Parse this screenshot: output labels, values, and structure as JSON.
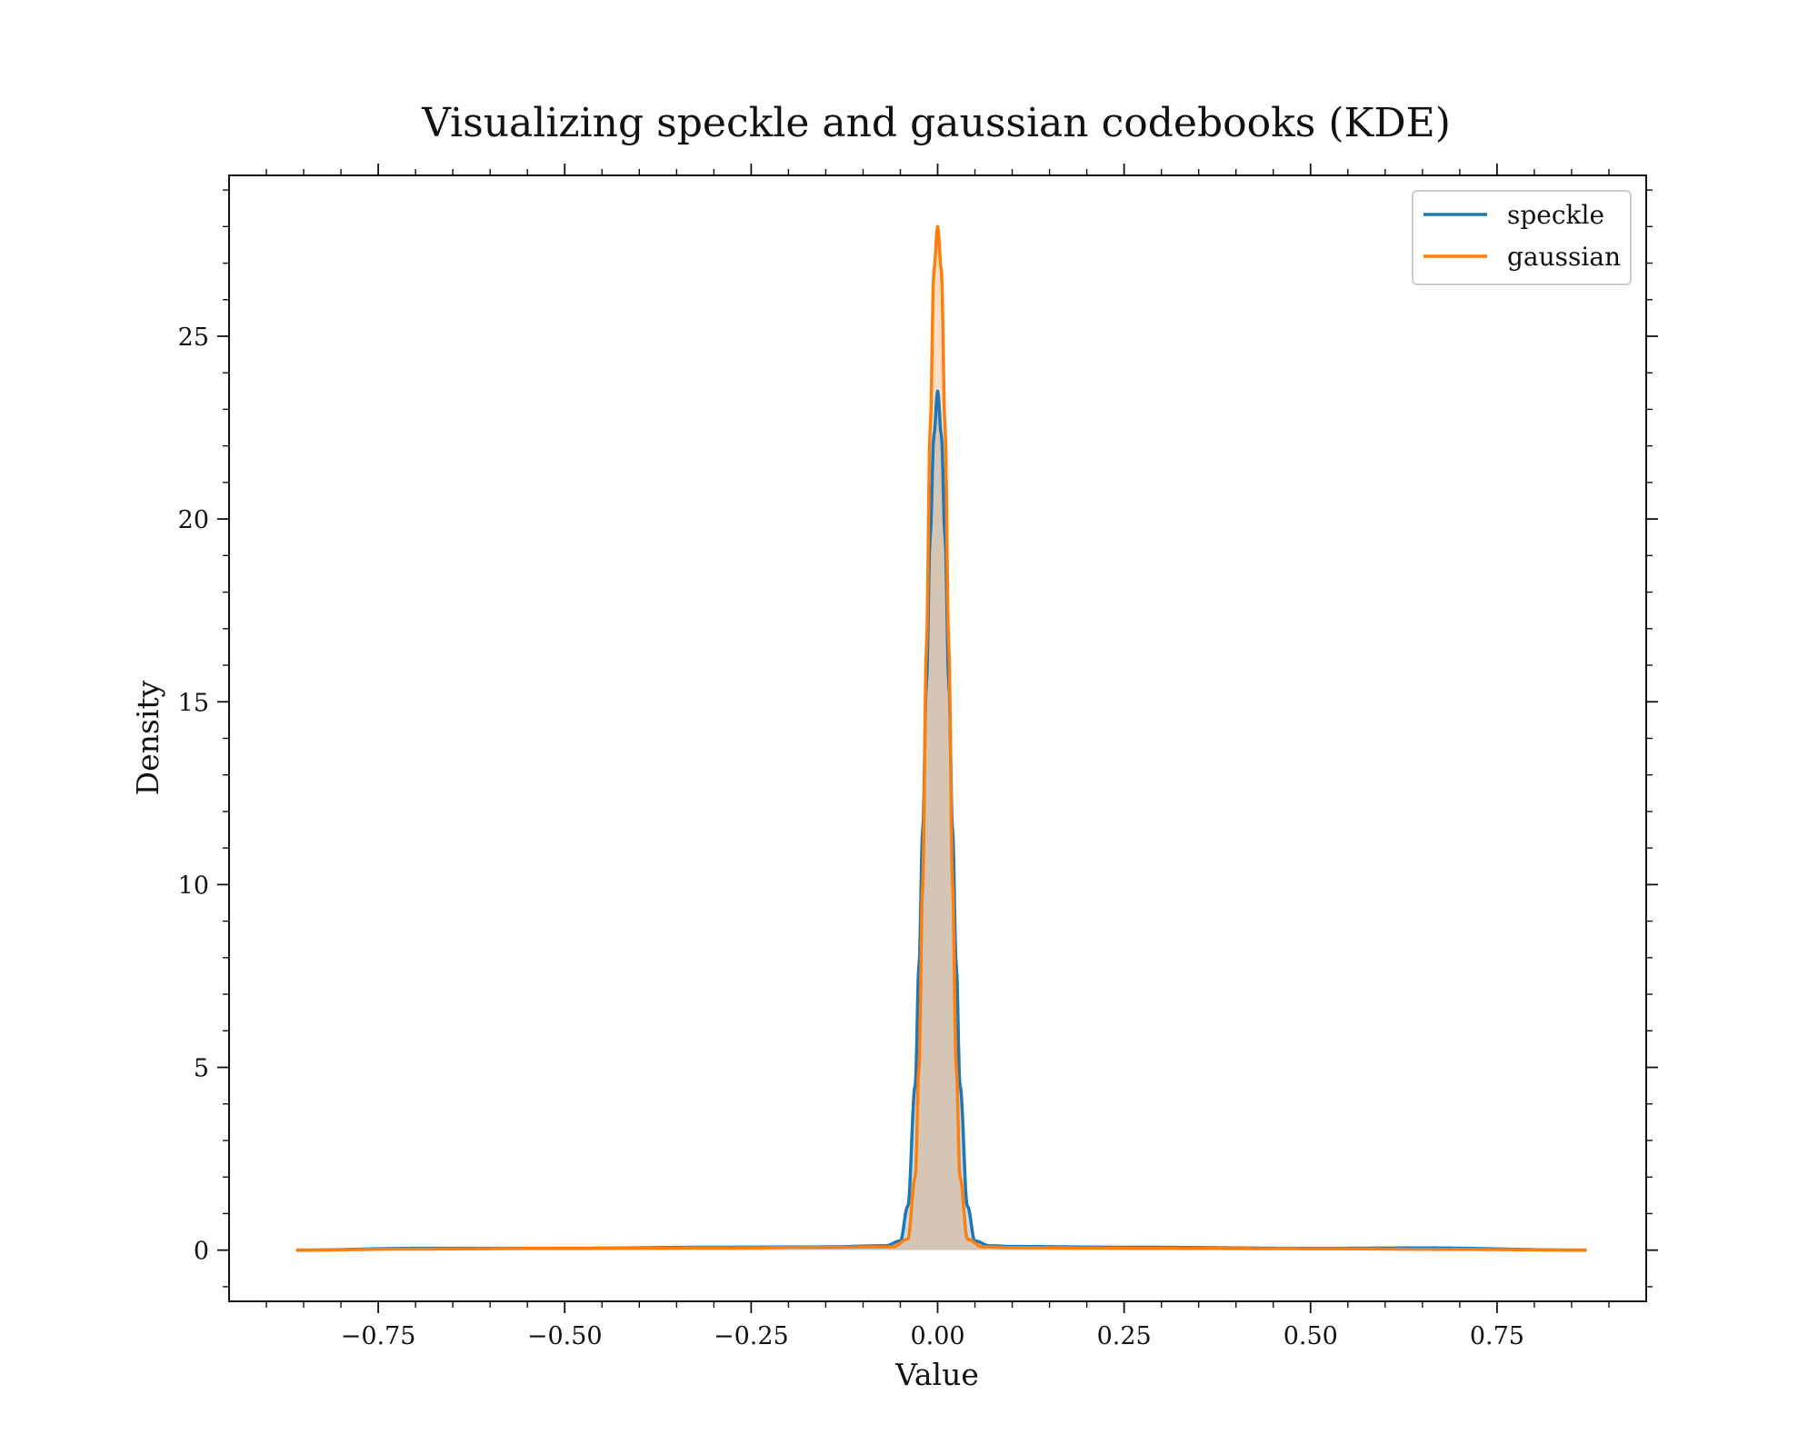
{
  "chart_data": {
    "type": "area",
    "title": "Visualizing speckle and gaussian codebooks (KDE)",
    "xlabel": "Value",
    "ylabel": "Density",
    "xlim": [
      -0.95,
      0.95
    ],
    "ylim": [
      -1.4,
      29.4
    ],
    "x_major_ticks": [
      -0.75,
      -0.5,
      -0.25,
      0.0,
      0.25,
      0.5,
      0.75
    ],
    "x_tick_labels": [
      "−0.75",
      "−0.50",
      "−0.25",
      "0.00",
      "0.25",
      "0.50",
      "0.75"
    ],
    "y_major_ticks": [
      0,
      5,
      10,
      15,
      20,
      25
    ],
    "y_tick_labels": [
      "0",
      "5",
      "10",
      "15",
      "20",
      "25"
    ],
    "x_minor_step": 0.05,
    "y_minor_step": 1,
    "grid": false,
    "legend_position": "top-right",
    "series": [
      {
        "name": "speckle",
        "color": "#1f77b4",
        "fill_color": "#1f77b4",
        "fill_opacity": 0.25,
        "x": [
          -0.86,
          -0.7,
          -0.5,
          -0.3,
          -0.15,
          -0.07,
          -0.05,
          -0.04,
          -0.03,
          -0.025,
          -0.02,
          -0.015,
          -0.01,
          -0.005,
          0.0,
          0.005,
          0.01,
          0.015,
          0.02,
          0.025,
          0.03,
          0.04,
          0.05,
          0.07,
          0.1,
          0.25,
          0.5,
          0.65,
          0.87
        ],
        "values": [
          0.0,
          0.05,
          0.05,
          0.08,
          0.09,
          0.12,
          0.25,
          1.2,
          4.5,
          7.8,
          11.5,
          15.5,
          19.5,
          22.3,
          23.5,
          22.3,
          19.5,
          15.5,
          11.5,
          7.8,
          4.5,
          1.2,
          0.25,
          0.12,
          0.1,
          0.08,
          0.05,
          0.06,
          0.0
        ]
      },
      {
        "name": "gaussian",
        "color": "#ff7f0e",
        "fill_color": "#ff7f0e",
        "fill_opacity": 0.25,
        "x": [
          -0.86,
          -0.7,
          -0.5,
          -0.3,
          -0.15,
          -0.06,
          -0.04,
          -0.03,
          -0.025,
          -0.02,
          -0.015,
          -0.01,
          -0.005,
          0.0,
          0.005,
          0.01,
          0.015,
          0.02,
          0.025,
          0.03,
          0.04,
          0.06,
          0.1,
          0.3,
          0.5,
          0.7,
          0.87
        ],
        "values": [
          0.0,
          0.03,
          0.05,
          0.06,
          0.08,
          0.09,
          0.3,
          2.0,
          5.0,
          10.0,
          16.5,
          22.5,
          26.8,
          28.0,
          26.8,
          22.5,
          16.5,
          10.0,
          5.0,
          2.0,
          0.3,
          0.09,
          0.07,
          0.05,
          0.04,
          0.02,
          0.0
        ]
      }
    ]
  }
}
